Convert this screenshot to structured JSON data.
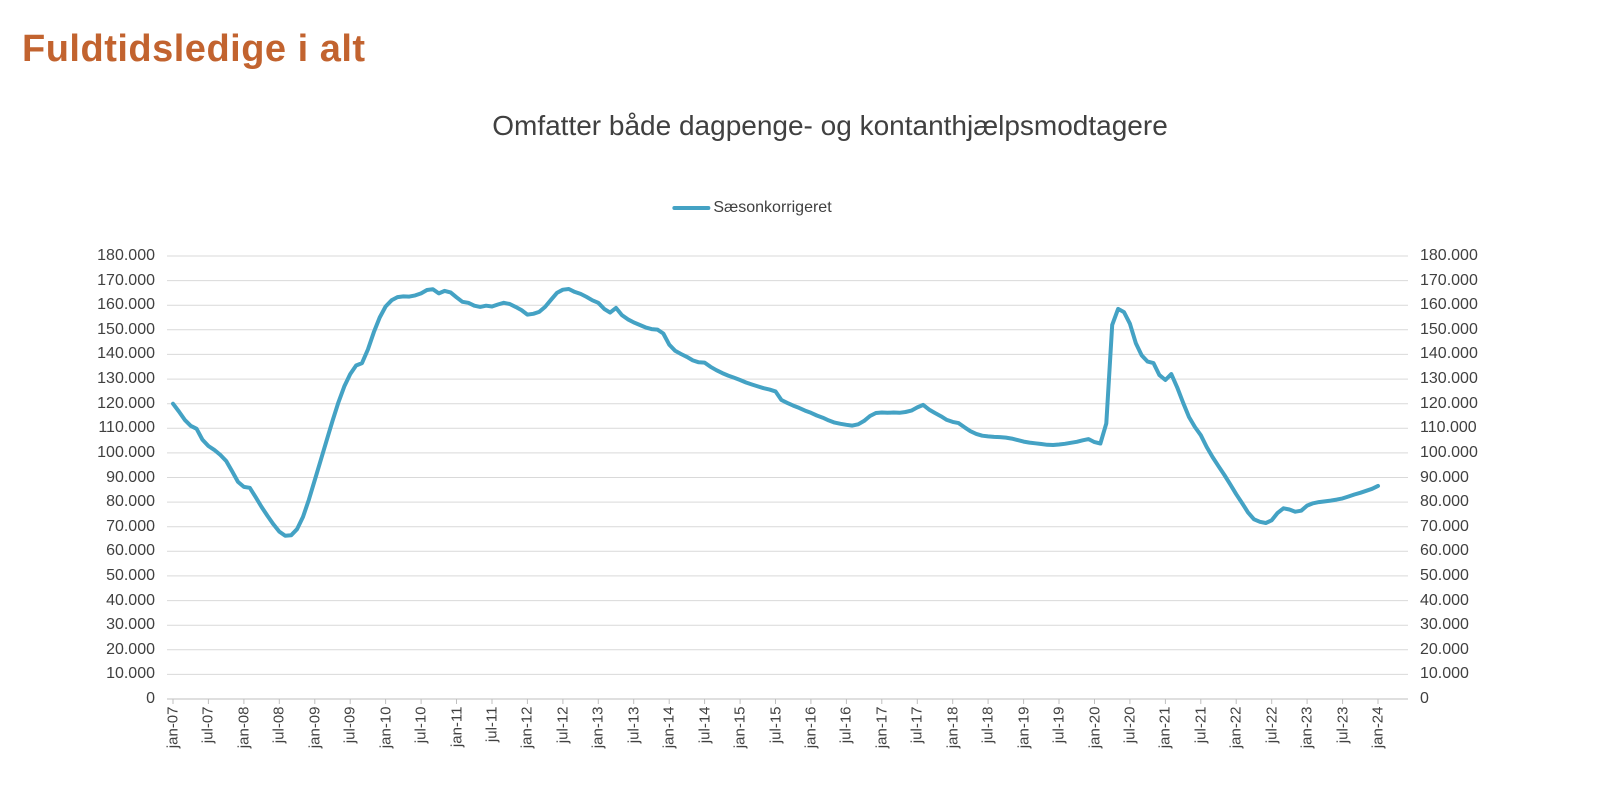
{
  "page": {
    "title": "Fuldtidsledige i alt",
    "title_color": "#c2632f"
  },
  "chart": {
    "subtitle": "Omfatter både dagpenge- og kontanthjælpsmodtagere",
    "legend_label": "Sæsonkorrigeret",
    "line_color": "#44a2c4",
    "gridline_color": "#d9d9d9",
    "axis_color": "#bfbfbf"
  },
  "chart_data": {
    "type": "line",
    "title": "Omfatter både dagpenge- og kontanthjælpsmodtagere",
    "xlabel": "",
    "ylabel": "",
    "ylim": [
      0,
      180000
    ],
    "y_tick_step": 10000,
    "grid": "horizontal",
    "legend_position": "top",
    "x_start": "jan-07",
    "x_end": "jan-24",
    "x_tick_labels": [
      "jan-07",
      "jul-07",
      "jan-08",
      "jul-08",
      "jan-09",
      "jul-09",
      "jan-10",
      "jul-10",
      "jan-11",
      "jul-11",
      "jan-12",
      "jul-12",
      "jan-13",
      "jul-13",
      "jan-14",
      "jul-14",
      "jan-15",
      "jul-15",
      "jan-16",
      "jul-16",
      "jan-17",
      "jul-17",
      "jan-18",
      "jul-18",
      "jan-19",
      "jul-19",
      "jan-20",
      "jul-20",
      "jan-21",
      "jul-21",
      "jan-22",
      "jul-22",
      "jan-23",
      "jul-23",
      "jan-24"
    ],
    "y_tick_labels_top_to_bottom": [
      "180.000",
      "170.000",
      "160.000",
      "150.000",
      "140.000",
      "130.000",
      "120.000",
      "110.000",
      "100.000",
      "90.000",
      "80.000",
      "70.000",
      "60.000",
      "50.000",
      "40.000",
      "30.000",
      "20.000",
      "10.000",
      "0"
    ],
    "series": [
      {
        "name": "Sæsonkorrigeret",
        "color": "#44a2c4",
        "values": [
          120000,
          116800,
          113400,
          111000,
          109800,
          105300,
          102800,
          101200,
          99200,
          96700,
          92500,
          88200,
          86200,
          85800,
          82000,
          78000,
          74400,
          71000,
          68000,
          66300,
          66500,
          69000,
          74000,
          81000,
          89000,
          97000,
          105000,
          113000,
          120500,
          127000,
          132000,
          135500,
          136500,
          142000,
          149000,
          155000,
          159500,
          162000,
          163300,
          163600,
          163500,
          164000,
          164800,
          166200,
          166500,
          164800,
          165800,
          165200,
          163200,
          161400,
          161000,
          159800,
          159300,
          159800,
          159500,
          160300,
          161000,
          160500,
          159300,
          158000,
          156200,
          156500,
          157300,
          159300,
          162200,
          165000,
          166300,
          166600,
          165400,
          164600,
          163400,
          162000,
          161000,
          158500,
          157000,
          158900,
          156000,
          154300,
          153000,
          152000,
          151000,
          150300,
          150100,
          148500,
          144000,
          141500,
          140200,
          139000,
          137600,
          136800,
          136700,
          135000,
          133600,
          132400,
          131400,
          130500,
          129600,
          128600,
          127800,
          127000,
          126300,
          125700,
          125000,
          121500,
          120300,
          119200,
          118300,
          117200,
          116300,
          115200,
          114300,
          113200,
          112300,
          111800,
          111400,
          111100,
          111600,
          113000,
          115000,
          116200,
          116400,
          116300,
          116400,
          116300,
          116600,
          117200,
          118500,
          119500,
          117600,
          116200,
          114900,
          113400,
          112600,
          112100,
          110400,
          108800,
          107700,
          107000,
          106700,
          106500,
          106400,
          106200,
          105800,
          105200,
          104600,
          104200,
          103900,
          103600,
          103300,
          103200,
          103400,
          103700,
          104100,
          104500,
          105100,
          105600,
          104400,
          103800,
          112000,
          152000,
          158500,
          157200,
          152500,
          144600,
          139600,
          137100,
          136500,
          131600,
          129600,
          132000,
          126600,
          120400,
          114600,
          110500,
          107200,
          102400,
          98300,
          94600,
          91000,
          87200,
          83200,
          79600,
          75800,
          73000,
          72000,
          71500,
          72600,
          75600,
          77500,
          77000,
          76100,
          76500,
          78600,
          79500,
          80000,
          80300,
          80600,
          81000,
          81500,
          82300,
          83100,
          83800,
          84600,
          85400,
          86600
        ]
      }
    ]
  }
}
